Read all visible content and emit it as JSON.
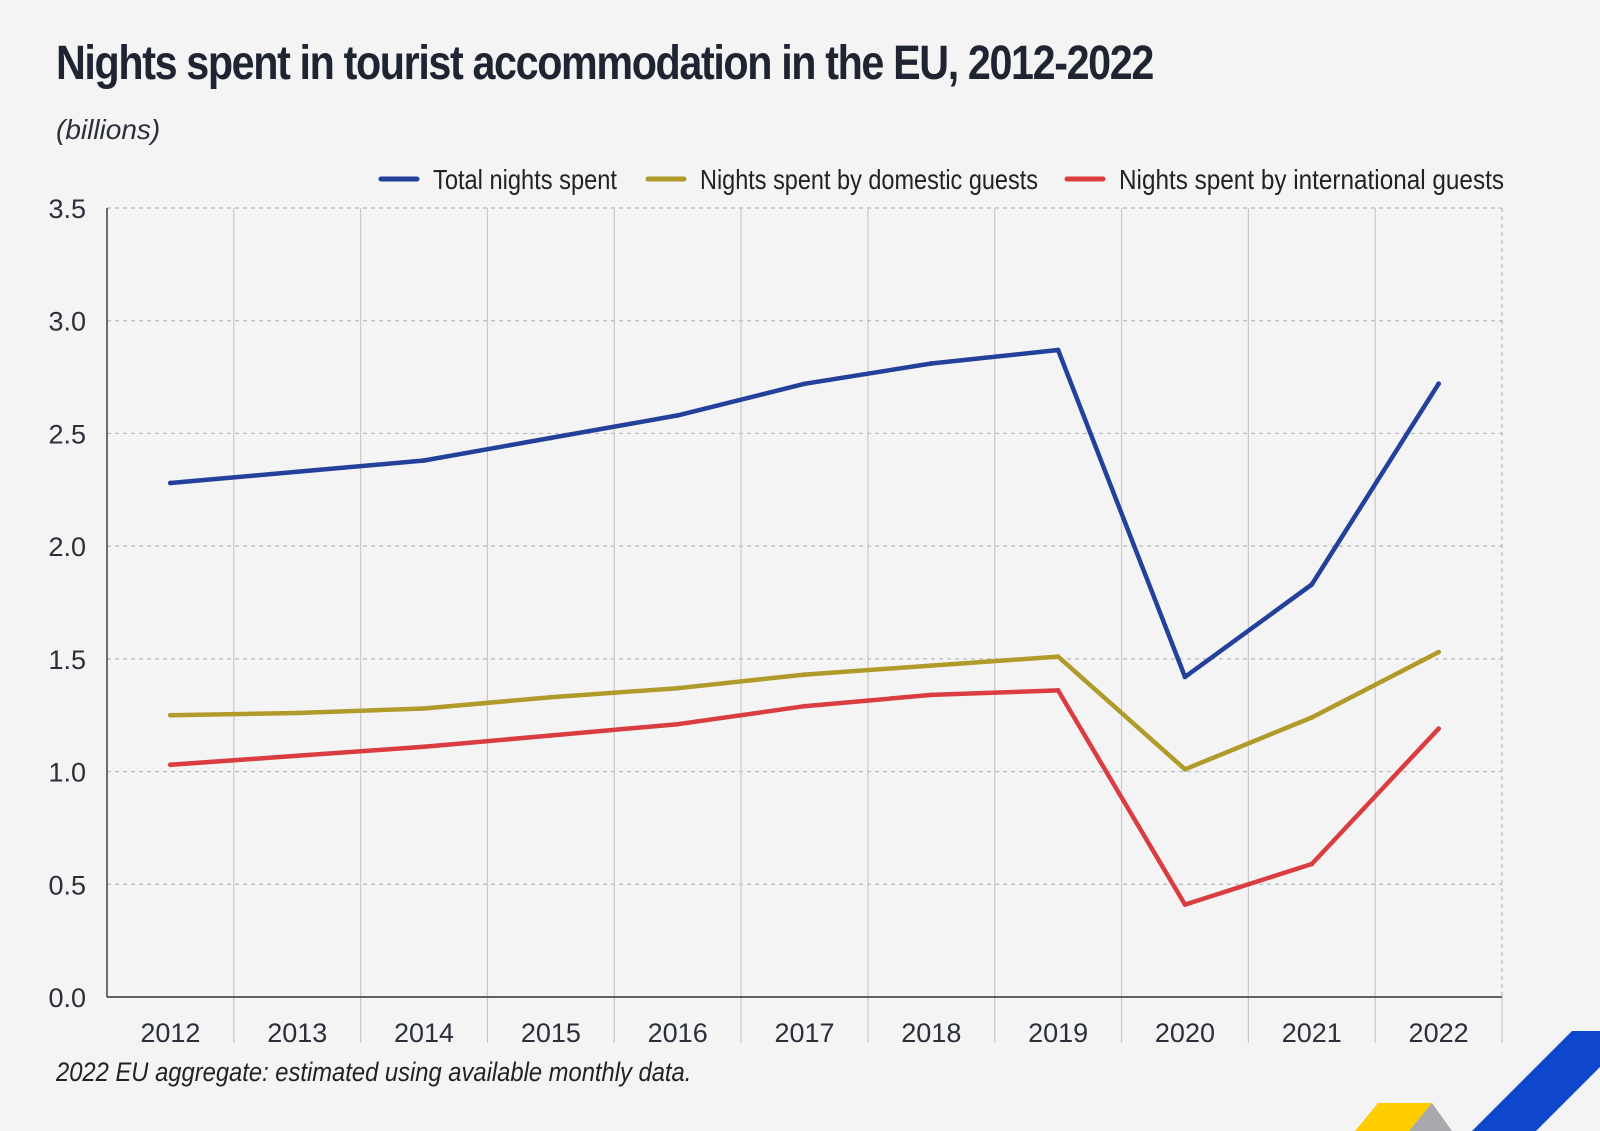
{
  "chart_data": {
    "type": "line",
    "title": "Nights spent in tourist accommodation in the EU, 2012-2022",
    "subtitle": "(billions)",
    "xlabel": "",
    "ylabel": "",
    "categories": [
      "2012",
      "2013",
      "2014",
      "2015",
      "2016",
      "2017",
      "2018",
      "2019",
      "2020",
      "2021",
      "2022"
    ],
    "ylim": [
      0,
      3.5
    ],
    "yticks": [
      "0.0",
      "0.5",
      "1.0",
      "1.5",
      "2.0",
      "2.5",
      "3.0",
      "3.5"
    ],
    "grid": true,
    "legend_position": "top-right",
    "series": [
      {
        "name": "Total nights spent",
        "color": "#23409a",
        "values": [
          2.28,
          2.33,
          2.38,
          2.48,
          2.58,
          2.72,
          2.81,
          2.87,
          1.42,
          1.83,
          2.72
        ]
      },
      {
        "name": "Nights spent by domestic guests",
        "color": "#b09a2a",
        "values": [
          1.25,
          1.26,
          1.28,
          1.33,
          1.37,
          1.43,
          1.47,
          1.51,
          1.01,
          1.24,
          1.53
        ]
      },
      {
        "name": "Nights spent by international guests",
        "color": "#d93d40",
        "values": [
          1.03,
          1.07,
          1.11,
          1.16,
          1.21,
          1.29,
          1.34,
          1.36,
          0.41,
          0.59,
          1.19
        ]
      }
    ]
  },
  "footnote": "2022 EU aggregate: estimated using available monthly data.",
  "decor": {
    "yellow": "#ffcc00",
    "grey": "#a7a9ac",
    "blue": "#0e47cb"
  }
}
